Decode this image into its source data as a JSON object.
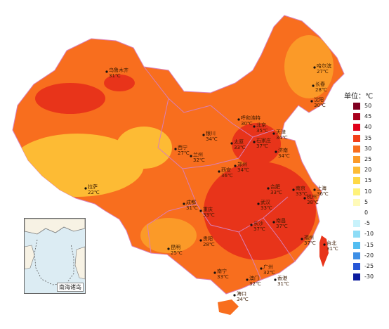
{
  "legend": {
    "title": "单位：℃",
    "stops": [
      {
        "label": "50",
        "color": "#7f0020"
      },
      {
        "label": "45",
        "color": "#a8001c"
      },
      {
        "label": "40",
        "color": "#e0001a"
      },
      {
        "label": "35",
        "color": "#f2401a"
      },
      {
        "label": "30",
        "color": "#f86e1e"
      },
      {
        "label": "25",
        "color": "#fb9a28"
      },
      {
        "label": "20",
        "color": "#fdbb34"
      },
      {
        "label": "15",
        "color": "#fed845"
      },
      {
        "label": "10",
        "color": "#fff27a"
      },
      {
        "label": "5",
        "color": "#fffab8"
      },
      {
        "label": "0",
        "color": "#ffffff"
      },
      {
        "label": "-5",
        "color": "#c8f2fb"
      },
      {
        "label": "-10",
        "color": "#8ddcf6"
      },
      {
        "label": "-15",
        "color": "#53bdf1"
      },
      {
        "label": "-20",
        "color": "#3d8fe6"
      },
      {
        "label": "-25",
        "color": "#2756d6"
      },
      {
        "label": "-30",
        "color": "#0c1c9e"
      }
    ]
  },
  "cities": [
    {
      "name": "乌鲁木齐",
      "temp": "31℃"
    },
    {
      "name": "哈尔滨",
      "temp": "27℃"
    },
    {
      "name": "长春",
      "temp": "28℃"
    },
    {
      "name": "沈阳",
      "temp": "30℃"
    },
    {
      "name": "呼和浩特",
      "temp": "30℃"
    },
    {
      "name": "北京",
      "temp": "35℃"
    },
    {
      "name": "天津",
      "temp": "34℃"
    },
    {
      "name": "银川",
      "temp": "34℃"
    },
    {
      "name": "太原",
      "temp": "33℃"
    },
    {
      "name": "石家庄",
      "temp": "37℃"
    },
    {
      "name": "济南",
      "temp": "34℃"
    },
    {
      "name": "西宁",
      "temp": "27℃"
    },
    {
      "name": "兰州",
      "temp": "32℃"
    },
    {
      "name": "郑州",
      "temp": "34℃"
    },
    {
      "name": "西安",
      "temp": "36℃"
    },
    {
      "name": "拉萨",
      "temp": "22℃"
    },
    {
      "name": "合肥",
      "temp": "33℃"
    },
    {
      "name": "南京",
      "temp": "33℃"
    },
    {
      "name": "上海",
      "temp": "36℃"
    },
    {
      "name": "杭州",
      "temp": "38℃"
    },
    {
      "name": "武汉",
      "temp": "33℃"
    },
    {
      "name": "成都",
      "temp": "31℃"
    },
    {
      "name": "重庆",
      "temp": "33℃"
    },
    {
      "name": "长沙",
      "temp": "37℃"
    },
    {
      "name": "南昌",
      "temp": "37℃"
    },
    {
      "name": "贵阳",
      "temp": "28℃"
    },
    {
      "name": "福州",
      "temp": "37℃"
    },
    {
      "name": "台北",
      "temp": "31℃"
    },
    {
      "name": "昆明",
      "temp": "25℃"
    },
    {
      "name": "南宁",
      "temp": "33℃"
    },
    {
      "name": "广州",
      "temp": "32℃"
    },
    {
      "name": "澳门",
      "temp": "32℃"
    },
    {
      "name": "香港",
      "temp": "31℃"
    },
    {
      "name": "海口",
      "temp": "34℃"
    }
  ],
  "inset": {
    "label": "南海诸岛"
  },
  "colors": {
    "hot": "#e8341a",
    "warm": "#f86e1e",
    "mild": "#fb9a28",
    "cool": "#fdbb34",
    "border": "#d97fb8"
  }
}
